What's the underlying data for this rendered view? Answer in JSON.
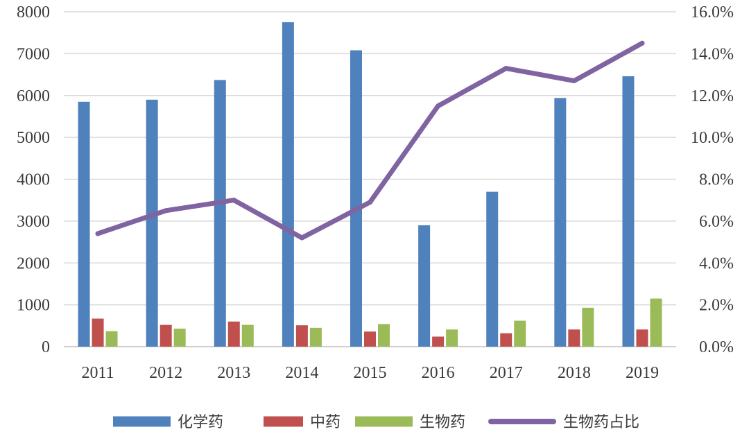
{
  "chart_data": {
    "type": "bar",
    "categories": [
      "2011",
      "2012",
      "2013",
      "2014",
      "2015",
      "2016",
      "2017",
      "2018",
      "2019"
    ],
    "series": [
      {
        "name": "化学药",
        "type": "bar",
        "axis": "left",
        "color": "#4f81bd",
        "values": [
          5850,
          5900,
          6370,
          7750,
          7080,
          2900,
          3700,
          5940,
          6460
        ]
      },
      {
        "name": "中药",
        "type": "bar",
        "axis": "left",
        "color": "#c0504d",
        "values": [
          670,
          520,
          600,
          510,
          360,
          240,
          320,
          410,
          410
        ]
      },
      {
        "name": "生物药",
        "type": "bar",
        "axis": "left",
        "color": "#9bbb59",
        "values": [
          370,
          430,
          520,
          450,
          540,
          410,
          620,
          930,
          1150
        ]
      },
      {
        "name": "生物药占比",
        "type": "line",
        "axis": "right",
        "color": "#8064a2",
        "values": [
          5.4,
          6.5,
          7.0,
          5.2,
          6.9,
          11.5,
          13.3,
          12.7,
          14.5
        ]
      }
    ],
    "y_left": {
      "min": 0,
      "max": 8000,
      "ticks": [
        "0",
        "1000",
        "2000",
        "3000",
        "4000",
        "5000",
        "6000",
        "7000",
        "8000"
      ]
    },
    "y_right": {
      "min": 0,
      "max": 16,
      "ticks": [
        "0.0%",
        "2.0%",
        "4.0%",
        "6.0%",
        "8.0%",
        "10.0%",
        "12.0%",
        "14.0%",
        "16.0%"
      ]
    },
    "grid": true,
    "legend_position": "bottom",
    "gridline_color": "#d9d9d9",
    "text_color": "#3a3a3a"
  }
}
